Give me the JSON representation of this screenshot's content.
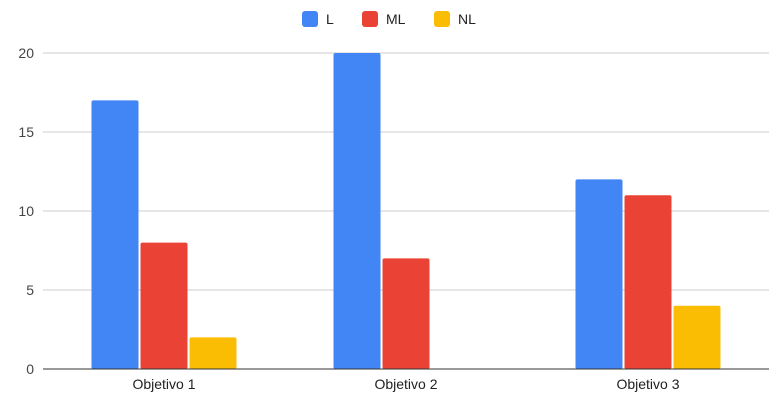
{
  "chart_data": {
    "type": "bar",
    "categories": [
      "Objetivo 1",
      "Objetivo 2",
      "Objetivo 3"
    ],
    "series": [
      {
        "name": "L",
        "color": "#4285F4",
        "values": [
          17,
          20,
          12
        ]
      },
      {
        "name": "ML",
        "color": "#EA4335",
        "values": [
          8,
          7,
          11
        ]
      },
      {
        "name": "NL",
        "color": "#FBBC04",
        "values": [
          2,
          0,
          4
        ]
      }
    ],
    "title": "",
    "xlabel": "",
    "ylabel": "",
    "ylim": [
      0,
      20
    ],
    "yticks": [
      0,
      5,
      10,
      15,
      20
    ],
    "grid": true,
    "legend_position": "top-center"
  }
}
